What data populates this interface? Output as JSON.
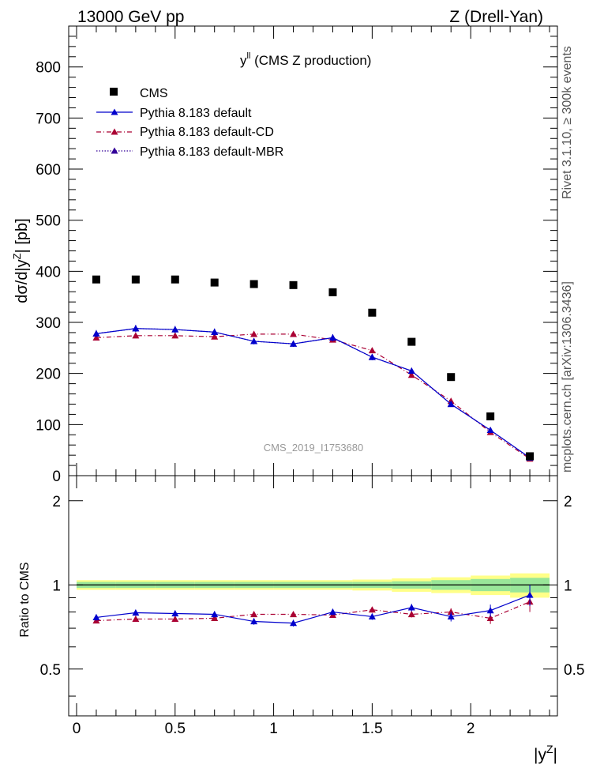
{
  "header": {
    "left": "13000 GeV pp",
    "right": "Z (Drell-Yan)"
  },
  "side_labels": {
    "rivet": "Rivet 3.1.10, ≥ 300k events",
    "mcplots": "mcplots.cern.ch [arXiv:1306.3436]"
  },
  "watermark": "CMS_2019_I1753680",
  "chart_data": [
    {
      "type": "scatter",
      "title_main": "y",
      "title_sup": "ll",
      "title_rest": " (CMS Z production)",
      "ylabel": "dσ/d|y",
      "ylabel_sup": "Z",
      "ylabel_rest": "| [pb]",
      "ylim": [
        0,
        880
      ],
      "yticks": [
        0,
        100,
        200,
        300,
        400,
        500,
        600,
        700,
        800
      ],
      "ytick_labels": [
        "0",
        "100",
        "200",
        "300",
        "400",
        "500",
        "600",
        "700",
        "800"
      ],
      "xlim": [
        -0.04,
        2.44
      ],
      "x": [
        0.1,
        0.3,
        0.5,
        0.7,
        0.9,
        1.1,
        1.3,
        1.5,
        1.7,
        1.9,
        2.1,
        2.3
      ],
      "legend": [
        "CMS",
        "Pythia 8.183 default",
        "Pythia 8.183 default-CD",
        "Pythia 8.183 default-MBR"
      ],
      "series": [
        {
          "name": "CMS",
          "style": "data",
          "color": "#000000",
          "values": [
            384,
            384,
            384,
            378,
            375,
            373,
            359,
            319,
            262,
            193,
            116,
            38
          ]
        },
        {
          "name": "Pythia 8.183 default",
          "style": "solid",
          "color": "#0000cc",
          "values": [
            278,
            288,
            286,
            281,
            263,
            258,
            270,
            232,
            205,
            140,
            89,
            35
          ],
          "errors": [
            7,
            7,
            7,
            7,
            6,
            6,
            7,
            6,
            6,
            5,
            4,
            3
          ]
        },
        {
          "name": "Pythia 8.183 default-CD",
          "style": "dashdot",
          "color": "#aa0033",
          "values": [
            270,
            274,
            274,
            272,
            277,
            277,
            266,
            245,
            197,
            146,
            85,
            33
          ],
          "errors": [
            5,
            5,
            5,
            5,
            5,
            5,
            5,
            5,
            5,
            4,
            3,
            3
          ]
        },
        {
          "name": "Pythia 8.183 default-MBR",
          "style": "dotted",
          "color": "#330099",
          "values": [
            278,
            288,
            286,
            281,
            263,
            258,
            270,
            232,
            205,
            140,
            89,
            35
          ]
        }
      ]
    },
    {
      "type": "scatter",
      "ylabel": "Ratio to CMS",
      "xlabel": "|y",
      "xlabel_sup": "Z",
      "xlabel_rest": "|",
      "ylim": [
        0.34,
        2.46
      ],
      "yticks": [
        0.5,
        1,
        2
      ],
      "ytick_labels": [
        "0.5",
        "1",
        "2"
      ],
      "xticks": [
        0,
        0.5,
        1,
        1.5,
        2
      ],
      "xtick_labels": [
        "0",
        "0.5",
        "1",
        "1.5",
        "2"
      ],
      "x": [
        0.1,
        0.3,
        0.5,
        0.7,
        0.9,
        1.1,
        1.3,
        1.5,
        1.7,
        1.9,
        2.1,
        2.3
      ],
      "band_inner": [
        0.025,
        0.025,
        0.025,
        0.025,
        0.025,
        0.025,
        0.025,
        0.025,
        0.03,
        0.04,
        0.05,
        0.06
      ],
      "band_outer": [
        0.04,
        0.04,
        0.04,
        0.04,
        0.04,
        0.04,
        0.04,
        0.045,
        0.055,
        0.065,
        0.08,
        0.1
      ],
      "series": [
        {
          "name": "Pythia 8.183 default",
          "style": "solid",
          "color": "#0000cc",
          "values": [
            0.765,
            0.795,
            0.79,
            0.785,
            0.74,
            0.73,
            0.8,
            0.77,
            0.83,
            0.77,
            0.81,
            0.92
          ],
          "errors": [
            0.02,
            0.02,
            0.02,
            0.02,
            0.02,
            0.02,
            0.02,
            0.02,
            0.025,
            0.03,
            0.04,
            0.08
          ]
        },
        {
          "name": "Pythia 8.183 default-CD",
          "style": "dashdot",
          "color": "#aa0033",
          "values": [
            0.745,
            0.755,
            0.755,
            0.76,
            0.785,
            0.785,
            0.78,
            0.815,
            0.785,
            0.8,
            0.76,
            0.87
          ],
          "errors": [
            0.015,
            0.015,
            0.015,
            0.015,
            0.015,
            0.015,
            0.015,
            0.02,
            0.02,
            0.025,
            0.035,
            0.07
          ]
        }
      ]
    }
  ]
}
